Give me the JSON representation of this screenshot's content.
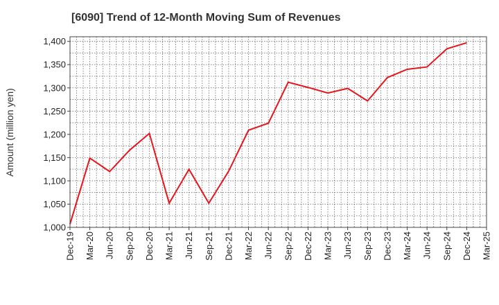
{
  "chart_data": {
    "type": "line",
    "title": "[6090]  Trend of 12-Month Moving Sum of Revenues",
    "xlabel": "",
    "ylabel": "Amount (million yen)",
    "ylim": [
      1000,
      1410
    ],
    "yticks": [
      1000,
      1050,
      1100,
      1150,
      1200,
      1250,
      1300,
      1350,
      1400
    ],
    "ytick_labels": [
      "1,000",
      "1,050",
      "1,100",
      "1,150",
      "1,200",
      "1,250",
      "1,300",
      "1,350",
      "1,400"
    ],
    "categories": [
      "Dec-19",
      "Mar-20",
      "Jun-20",
      "Sep-20",
      "Dec-20",
      "Mar-21",
      "Jun-21",
      "Sep-21",
      "Dec-21",
      "Mar-22",
      "Jun-22",
      "Sep-22",
      "Dec-22",
      "Mar-23",
      "Jun-23",
      "Sep-23",
      "Dec-23",
      "Mar-24",
      "Jun-24",
      "Sep-24",
      "Dec-24",
      "Mar-25"
    ],
    "grid": true,
    "series": [
      {
        "name": "",
        "color": "#e8141b",
        "values": [
          1007,
          1149,
          1120,
          1166,
          1202,
          1052,
          1125,
          1052,
          1121,
          1209,
          1224,
          1312,
          1301,
          1289,
          1299,
          1272,
          1322,
          1340,
          1345,
          1384,
          1397,
          null
        ]
      }
    ]
  }
}
